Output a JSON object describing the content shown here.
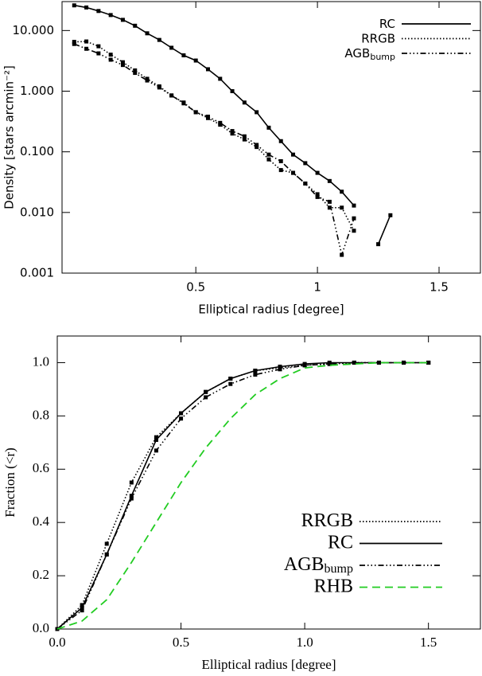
{
  "chart_data": [
    {
      "type": "line",
      "yscale": "log",
      "xlabel": "Elliptical radius [degree]",
      "ylabel": "Density [stars arcmin⁻²]",
      "xlim": [
        -0.05,
        1.67
      ],
      "xticks": [
        0.5,
        1.0,
        1.5
      ],
      "ylim": [
        0.001,
        30
      ],
      "yticks": [
        {
          "value": 0.001,
          "label": "0.001"
        },
        {
          "value": 0.01,
          "label": "0.010"
        },
        {
          "value": 0.1,
          "label": "0.100"
        },
        {
          "value": 1,
          "label": "1.000"
        },
        {
          "value": 10,
          "label": "10.000"
        }
      ],
      "legend": "upper right",
      "x": [
        0,
        0.05,
        0.1,
        0.15,
        0.2,
        0.25,
        0.3,
        0.35,
        0.4,
        0.45,
        0.5,
        0.55,
        0.6,
        0.65,
        0.7,
        0.75,
        0.8,
        0.85,
        0.9,
        0.95,
        1.0,
        1.05,
        1.1,
        1.15,
        1.2,
        1.25,
        1.3
      ],
      "series": [
        {
          "name": "RC",
          "color": "#000000",
          "style": "solid",
          "values": [
            26,
            24,
            21,
            18,
            15,
            12,
            9,
            7,
            5.2,
            3.9,
            3.2,
            2.3,
            1.6,
            1.0,
            0.65,
            0.45,
            0.25,
            0.15,
            0.09,
            0.065,
            0.045,
            0.033,
            0.022,
            0.013,
            null,
            0.003,
            0.009
          ]
        },
        {
          "name": "RRGB",
          "color": "#000000",
          "style": "dotted",
          "values": [
            6.5,
            6.6,
            5.5,
            4.0,
            3.0,
            2.2,
            1.6,
            1.2,
            0.85,
            0.65,
            0.45,
            0.36,
            0.28,
            0.2,
            0.16,
            0.12,
            0.075,
            0.05,
            0.045,
            0.03,
            0.02,
            0.012,
            0.012,
            0.005,
            null,
            null,
            null
          ]
        },
        {
          "name": "AGB",
          "name_sub": "bump",
          "color": "#000000",
          "style": "dashdot",
          "values": [
            6.0,
            5.0,
            4.2,
            3.3,
            2.7,
            2.0,
            1.5,
            1.15,
            0.85,
            0.63,
            0.45,
            0.38,
            0.3,
            0.22,
            0.18,
            0.13,
            0.09,
            0.07,
            0.045,
            0.03,
            0.018,
            0.015,
            0.002,
            0.008,
            null,
            null,
            null
          ]
        }
      ]
    },
    {
      "type": "line",
      "yscale": "linear",
      "xlabel": "Elliptical radius [degree]",
      "ylabel": "Fraction (<r)",
      "xlim": [
        0,
        1.71
      ],
      "xticks": [
        {
          "value": 0,
          "label": "0.0"
        },
        {
          "value": 0.5,
          "label": "0.5"
        },
        {
          "value": 1,
          "label": "1.0"
        },
        {
          "value": 1.5,
          "label": "1.5"
        }
      ],
      "ylim": [
        0,
        1.1
      ],
      "yticks": [
        {
          "value": 0,
          "label": "0.0"
        },
        {
          "value": 0.2,
          "label": "0.2"
        },
        {
          "value": 0.4,
          "label": "0.4"
        },
        {
          "value": 0.6,
          "label": "0.6"
        },
        {
          "value": 0.8,
          "label": "0.8"
        },
        {
          "value": 1,
          "label": "1.0"
        }
      ],
      "legend": "lower right",
      "x": [
        0,
        0.1,
        0.2,
        0.3,
        0.4,
        0.5,
        0.6,
        0.7,
        0.8,
        0.9,
        1.0,
        1.1,
        1.2,
        1.3,
        1.4,
        1.5
      ],
      "series": [
        {
          "name": "RRGB",
          "color": "#000000",
          "style": "dotted",
          "values": [
            0,
            0.09,
            0.32,
            0.55,
            0.72,
            0.81,
            0.89,
            0.94,
            0.97,
            0.98,
            0.99,
            0.995,
            1.0,
            1.0,
            1.0,
            1.0
          ]
        },
        {
          "name": "RC",
          "color": "#000000",
          "style": "solid",
          "values": [
            0,
            0.08,
            0.28,
            0.5,
            0.71,
            0.81,
            0.89,
            0.94,
            0.97,
            0.985,
            0.995,
            1.0,
            1.0,
            1.0,
            1.0,
            1.0
          ]
        },
        {
          "name": "AGB",
          "name_sub": "bump",
          "color": "#000000",
          "style": "dashdot",
          "values": [
            0,
            0.07,
            0.28,
            0.49,
            0.67,
            0.79,
            0.87,
            0.92,
            0.955,
            0.975,
            0.99,
            0.995,
            1.0,
            1.0,
            1.0,
            1.0
          ]
        },
        {
          "name": "RHB",
          "color": "#22cc22",
          "style": "dashed",
          "markers": false,
          "values": [
            0,
            0.03,
            0.11,
            0.25,
            0.4,
            0.55,
            0.68,
            0.79,
            0.88,
            0.94,
            0.98,
            0.99,
            0.995,
            1.0,
            1.0,
            1.0
          ]
        }
      ]
    }
  ]
}
